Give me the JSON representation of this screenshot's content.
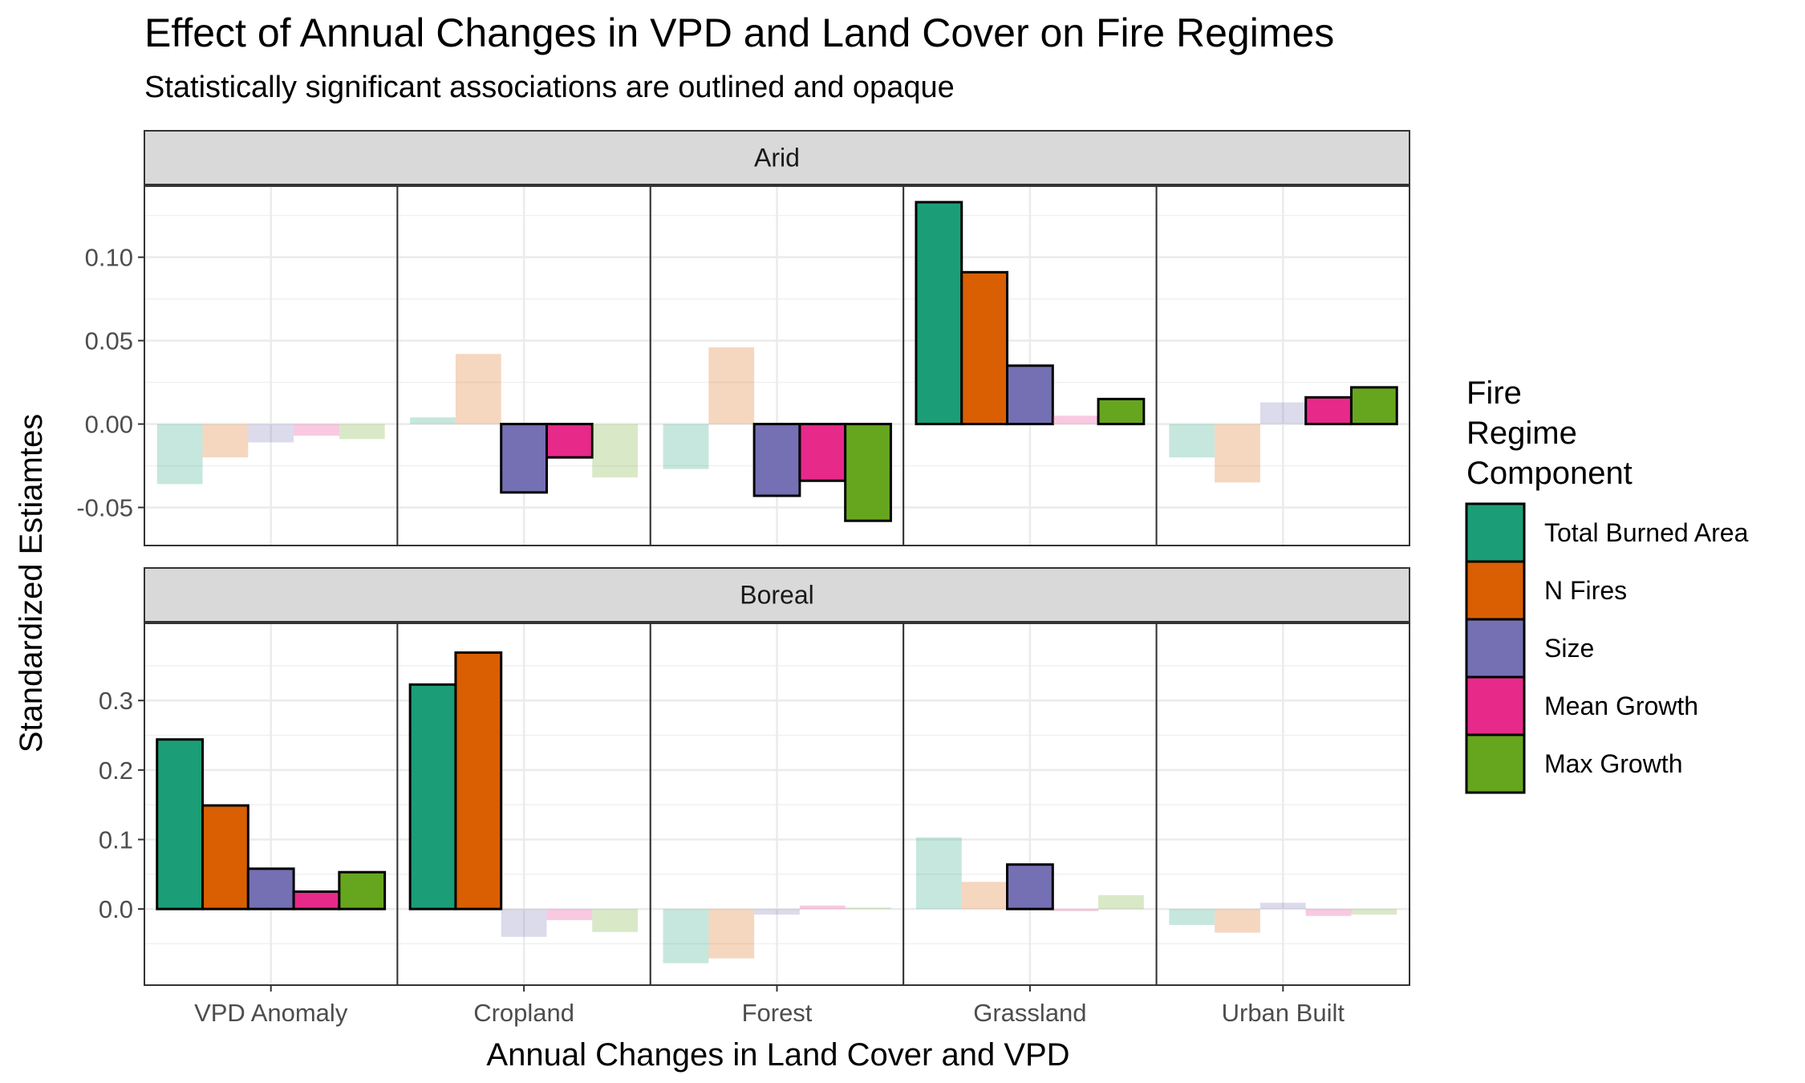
{
  "chart_data": {
    "type": "bar",
    "title": "Effect of Annual Changes in VPD and Land Cover on Fire Regimes",
    "subtitle": "Statistically significant associations are outlined and opaque",
    "xlabel": "Annual Changes in Land Cover and VPD",
    "ylabel": "Standardized Estiamtes",
    "categories": [
      "VPD Anomaly",
      "Cropland",
      "Forest",
      "Grassland",
      "Urban Built"
    ],
    "legend": {
      "title": [
        "Fire",
        "Regime",
        "Component"
      ],
      "position": "right",
      "entries": [
        {
          "name": "Total Burned Area",
          "color": "#1B9E77"
        },
        {
          "name": "N Fires",
          "color": "#D95F02"
        },
        {
          "name": "Size",
          "color": "#7570B3"
        },
        {
          "name": "Mean Growth",
          "color": "#E7298A"
        },
        {
          "name": "Max Growth",
          "color": "#66A61E"
        }
      ]
    },
    "grid": true,
    "significance_note": "significant bars are opaque with black outline; others are transparent",
    "facets": [
      {
        "name": "Arid",
        "ylim": [
          -0.068,
          0.133
        ],
        "yticks": [
          -0.05,
          0.0,
          0.05,
          0.1
        ],
        "ytick_labels": [
          "-0.05",
          "0.00",
          "0.05",
          "0.10"
        ],
        "series": [
          {
            "name": "Total Burned Area",
            "values": [
              -0.036,
              0.004,
              -0.027,
              0.133,
              -0.02
            ],
            "significant": [
              false,
              false,
              false,
              true,
              false
            ]
          },
          {
            "name": "N Fires",
            "values": [
              -0.02,
              0.042,
              0.046,
              0.091,
              -0.035
            ],
            "significant": [
              false,
              false,
              false,
              true,
              false
            ]
          },
          {
            "name": "Size",
            "values": [
              -0.011,
              -0.041,
              -0.043,
              0.035,
              0.013
            ],
            "significant": [
              false,
              true,
              true,
              true,
              false
            ]
          },
          {
            "name": "Mean Growth",
            "values": [
              -0.007,
              -0.02,
              -0.034,
              0.005,
              0.016
            ],
            "significant": [
              false,
              true,
              true,
              false,
              true
            ]
          },
          {
            "name": "Max Growth",
            "values": [
              -0.009,
              -0.032,
              -0.058,
              0.015,
              0.022
            ],
            "significant": [
              false,
              false,
              true,
              true,
              true
            ]
          }
        ]
      },
      {
        "name": "Boreal",
        "ylim": [
          -0.098,
          0.388
        ],
        "yticks": [
          0.0,
          0.1,
          0.2,
          0.3
        ],
        "ytick_labels": [
          "0.0",
          "0.1",
          "0.2",
          "0.3"
        ],
        "series": [
          {
            "name": "Total Burned Area",
            "values": [
              0.244,
              0.323,
              -0.078,
              0.103,
              -0.023
            ],
            "significant": [
              true,
              true,
              false,
              false,
              false
            ]
          },
          {
            "name": "N Fires",
            "values": [
              0.149,
              0.369,
              -0.071,
              0.039,
              -0.034
            ],
            "significant": [
              true,
              true,
              false,
              false,
              false
            ]
          },
          {
            "name": "Size",
            "values": [
              0.058,
              -0.04,
              -0.008,
              0.064,
              0.009
            ],
            "significant": [
              true,
              false,
              false,
              true,
              false
            ]
          },
          {
            "name": "Mean Growth",
            "values": [
              0.025,
              -0.016,
              0.005,
              -0.003,
              -0.01
            ],
            "significant": [
              true,
              false,
              false,
              false,
              false
            ]
          },
          {
            "name": "Max Growth",
            "values": [
              0.053,
              -0.033,
              0.002,
              0.02,
              -0.008
            ],
            "significant": [
              true,
              false,
              false,
              false,
              false
            ]
          }
        ]
      }
    ]
  }
}
